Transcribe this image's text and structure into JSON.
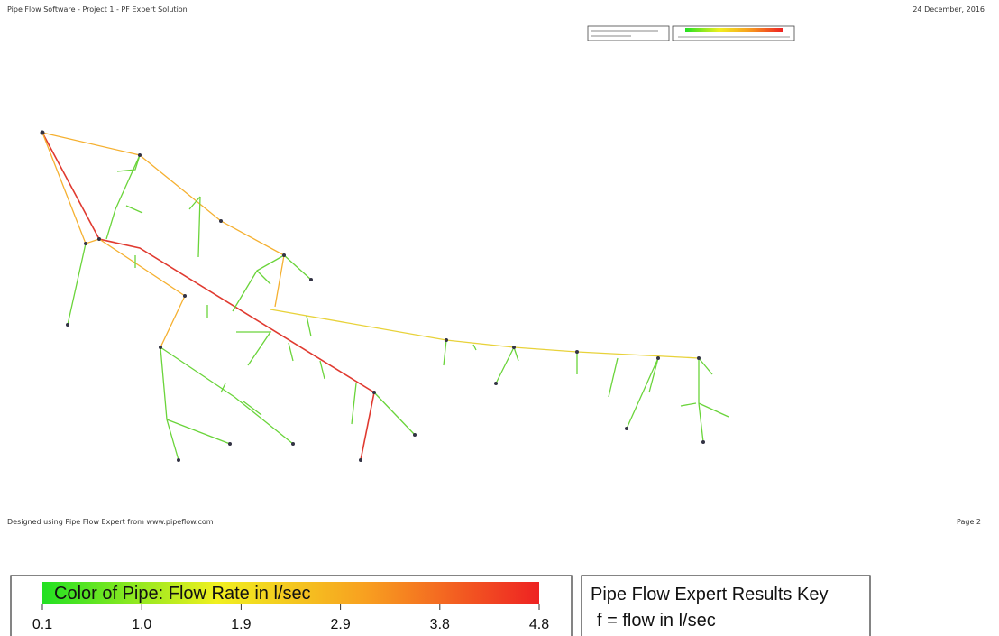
{
  "header": {
    "title": "Pipe Flow Software  -  Project 1  -  PF Expert Solution",
    "date": "24 December, 2016"
  },
  "footer": {
    "credit": "Designed using Pipe Flow Expert from www.pipeflow.com",
    "page": "Page 2"
  },
  "legend": {
    "title": "Color of Pipe: Flow Rate in l/sec",
    "scale": [
      "0.1",
      "1.0",
      "1.9",
      "2.9",
      "3.8",
      "4.8"
    ]
  },
  "results_key": {
    "title": "Pipe Flow Expert Results Key",
    "note": "f = flow in l/sec"
  }
}
